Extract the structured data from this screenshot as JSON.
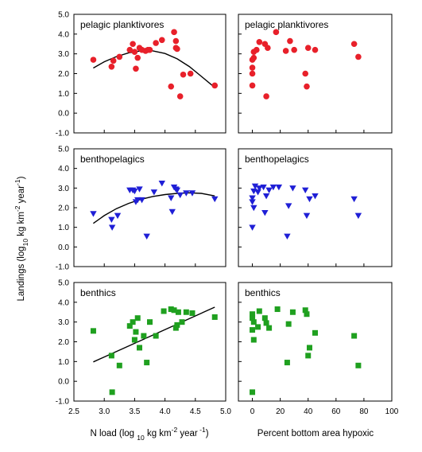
{
  "figure": {
    "ylabel_html": "Landings (log<sub>10</sub> kg km<sup>-2</sup> year<sup>-1</sup>)",
    "ylabel_parts": [
      {
        "t": "Landings (log",
        "s": "n"
      },
      {
        "t": "10",
        "s": "sub"
      },
      {
        "t": " kg km",
        "s": "n"
      },
      {
        "t": "-2",
        "s": "sup"
      },
      {
        "t": " year",
        "s": "n"
      },
      {
        "t": "-1",
        "s": "sup"
      },
      {
        "t": ")",
        "s": "n"
      }
    ],
    "xlabel_left_parts": [
      {
        "t": "N load (log ",
        "s": "n"
      },
      {
        "t": "10",
        "s": "sub"
      },
      {
        "t": " kg km",
        "s": "n"
      },
      {
        "t": "-2",
        "s": "sup"
      },
      {
        "t": " year",
        "s": "n"
      },
      {
        "t": " -1",
        "s": "sup"
      },
      {
        "t": ")",
        "s": "n"
      }
    ],
    "xlabel_right": "Percent bottom area hypoxic"
  },
  "chart_data": [
    {
      "type": "scatter",
      "panel": "pelagic-nload",
      "title": "pelagic planktivores",
      "marker": "circle",
      "color": "#e8202a",
      "xlim": [
        2.5,
        5.0
      ],
      "ylim": [
        -1.0,
        5.0
      ],
      "x_ticks": [
        "2.5",
        "3.0",
        "3.5",
        "4.0",
        "4.5",
        "5.0"
      ],
      "y_ticks": [
        "-1.0",
        "0.0",
        "1.0",
        "2.0",
        "3.0",
        "4.0",
        "5.0"
      ],
      "trend": {
        "type": "quadratic",
        "points": [
          [
            2.82,
            2.28
          ],
          [
            3.0,
            2.6
          ],
          [
            3.2,
            2.86
          ],
          [
            3.4,
            3.05
          ],
          [
            3.6,
            3.15
          ],
          [
            3.8,
            3.15
          ],
          [
            4.0,
            3.02
          ],
          [
            4.2,
            2.75
          ],
          [
            4.4,
            2.36
          ],
          [
            4.6,
            1.86
          ],
          [
            4.82,
            1.3
          ]
        ]
      },
      "points": [
        [
          2.82,
          2.7
        ],
        [
          3.12,
          2.35
        ],
        [
          3.15,
          2.65
        ],
        [
          3.25,
          2.85
        ],
        [
          3.42,
          3.2
        ],
        [
          3.47,
          3.5
        ],
        [
          3.5,
          3.1
        ],
        [
          3.52,
          2.25
        ],
        [
          3.55,
          2.8
        ],
        [
          3.58,
          3.3
        ],
        [
          3.62,
          3.2
        ],
        [
          3.68,
          3.15
        ],
        [
          3.72,
          3.2
        ],
        [
          3.75,
          3.2
        ],
        [
          3.85,
          3.55
        ],
        [
          3.95,
          3.7
        ],
        [
          4.1,
          1.35
        ],
        [
          4.15,
          4.1
        ],
        [
          4.18,
          3.65
        ],
        [
          4.18,
          3.3
        ],
        [
          4.2,
          3.25
        ],
        [
          4.25,
          0.85
        ],
        [
          4.3,
          1.95
        ],
        [
          4.42,
          2.0
        ],
        [
          4.82,
          1.4
        ]
      ]
    },
    {
      "type": "scatter",
      "panel": "pelagic-hypoxic",
      "title": "pelagic planktivores",
      "marker": "circle",
      "color": "#e8202a",
      "xlim": [
        -10,
        100
      ],
      "ylim": [
        -1.0,
        5.0
      ],
      "points": [
        [
          0,
          2.7
        ],
        [
          0,
          2.3
        ],
        [
          0,
          2.0
        ],
        [
          0,
          1.4
        ],
        [
          1,
          3.1
        ],
        [
          1,
          2.8
        ],
        [
          3,
          3.2
        ],
        [
          5,
          3.6
        ],
        [
          9,
          3.5
        ],
        [
          10,
          0.85
        ],
        [
          11,
          3.3
        ],
        [
          17,
          4.1
        ],
        [
          24,
          3.15
        ],
        [
          27,
          3.65
        ],
        [
          30,
          3.2
        ],
        [
          38,
          2.0
        ],
        [
          39,
          1.35
        ],
        [
          40,
          3.3
        ],
        [
          45,
          3.2
        ],
        [
          73,
          3.5
        ],
        [
          76,
          2.85
        ]
      ]
    },
    {
      "type": "scatter",
      "panel": "bentho-nload",
      "title": "benthopelagics",
      "marker": "triangle-down",
      "color": "#1f1fd6",
      "xlim": [
        2.5,
        5.0
      ],
      "ylim": [
        -1.0,
        5.0
      ],
      "x_ticks": [
        "2.5",
        "3.0",
        "3.5",
        "4.0",
        "4.5",
        "5.0"
      ],
      "y_ticks": [
        "-1.0",
        "0.0",
        "1.0",
        "2.0",
        "3.0",
        "4.0",
        "5.0"
      ],
      "trend": {
        "type": "quadratic",
        "points": [
          [
            2.82,
            1.2
          ],
          [
            3.0,
            1.6
          ],
          [
            3.2,
            1.95
          ],
          [
            3.4,
            2.22
          ],
          [
            3.6,
            2.42
          ],
          [
            3.8,
            2.57
          ],
          [
            4.0,
            2.67
          ],
          [
            4.2,
            2.73
          ],
          [
            4.4,
            2.76
          ],
          [
            4.6,
            2.73
          ],
          [
            4.82,
            2.6
          ]
        ]
      },
      "points": [
        [
          2.82,
          1.7
        ],
        [
          3.12,
          1.4
        ],
        [
          3.13,
          1.0
        ],
        [
          3.22,
          1.6
        ],
        [
          3.42,
          2.9
        ],
        [
          3.47,
          2.9
        ],
        [
          3.5,
          2.85
        ],
        [
          3.52,
          2.3
        ],
        [
          3.55,
          2.4
        ],
        [
          3.58,
          2.95
        ],
        [
          3.62,
          2.4
        ],
        [
          3.7,
          0.55
        ],
        [
          3.82,
          2.8
        ],
        [
          3.95,
          3.25
        ],
        [
          4.1,
          2.5
        ],
        [
          4.12,
          1.8
        ],
        [
          4.15,
          3.05
        ],
        [
          4.18,
          2.95
        ],
        [
          4.2,
          2.9
        ],
        [
          4.25,
          2.65
        ],
        [
          4.35,
          2.75
        ],
        [
          4.45,
          2.75
        ],
        [
          4.82,
          2.45
        ]
      ]
    },
    {
      "type": "scatter",
      "panel": "bentho-hypoxic",
      "title": "benthopelagics",
      "marker": "triangle-down",
      "color": "#1f1fd6",
      "xlim": [
        -10,
        100
      ],
      "ylim": [
        -1.0,
        5.0
      ],
      "points": [
        [
          0,
          2.5
        ],
        [
          0,
          2.3
        ],
        [
          0,
          1.0
        ],
        [
          1,
          2.85
        ],
        [
          1,
          2.0
        ],
        [
          2,
          3.1
        ],
        [
          4,
          2.8
        ],
        [
          5,
          3.0
        ],
        [
          8,
          3.05
        ],
        [
          9,
          1.75
        ],
        [
          10,
          2.6
        ],
        [
          12,
          2.9
        ],
        [
          15,
          3.05
        ],
        [
          19,
          3.05
        ],
        [
          25,
          0.55
        ],
        [
          26,
          2.1
        ],
        [
          29,
          3.0
        ],
        [
          38,
          2.9
        ],
        [
          39,
          1.6
        ],
        [
          41,
          2.45
        ],
        [
          45,
          2.6
        ],
        [
          73,
          2.45
        ],
        [
          76,
          1.6
        ]
      ]
    },
    {
      "type": "scatter",
      "panel": "benthic-nload",
      "title": "benthics",
      "marker": "square",
      "color": "#1fa01f",
      "xlim": [
        2.5,
        5.0
      ],
      "ylim": [
        -1.0,
        5.0
      ],
      "x_ticks": [
        "2.5",
        "3.0",
        "3.5",
        "4.0",
        "4.5",
        "5.0"
      ],
      "y_ticks": [
        "-1.0",
        "0.0",
        "1.0",
        "2.0",
        "3.0",
        "4.0",
        "5.0"
      ],
      "trend": {
        "type": "linear",
        "points": [
          [
            2.82,
            0.98
          ],
          [
            4.82,
            3.75
          ]
        ]
      },
      "points": [
        [
          2.82,
          2.55
        ],
        [
          3.12,
          1.3
        ],
        [
          3.13,
          -0.55
        ],
        [
          3.25,
          0.8
        ],
        [
          3.42,
          2.8
        ],
        [
          3.47,
          3.0
        ],
        [
          3.5,
          2.1
        ],
        [
          3.52,
          2.5
        ],
        [
          3.55,
          3.2
        ],
        [
          3.58,
          1.7
        ],
        [
          3.65,
          2.3
        ],
        [
          3.7,
          0.95
        ],
        [
          3.75,
          3.0
        ],
        [
          3.85,
          2.3
        ],
        [
          3.98,
          3.55
        ],
        [
          4.1,
          3.65
        ],
        [
          4.15,
          3.6
        ],
        [
          4.18,
          2.7
        ],
        [
          4.2,
          2.85
        ],
        [
          4.22,
          3.5
        ],
        [
          4.28,
          3.0
        ],
        [
          4.35,
          3.5
        ],
        [
          4.45,
          3.45
        ],
        [
          4.82,
          3.25
        ]
      ]
    },
    {
      "type": "scatter",
      "panel": "benthic-hypoxic",
      "title": "benthics",
      "marker": "square",
      "color": "#1fa01f",
      "xlim": [
        -10,
        100
      ],
      "ylim": [
        -1.0,
        5.0
      ],
      "x_ticks": [
        "0",
        "20",
        "40",
        "60",
        "80",
        "100"
      ],
      "points": [
        [
          0,
          3.4
        ],
        [
          0,
          3.2
        ],
        [
          0,
          2.6
        ],
        [
          0,
          -0.55
        ],
        [
          1,
          3.0
        ],
        [
          1,
          2.1
        ],
        [
          4,
          2.75
        ],
        [
          5,
          3.55
        ],
        [
          9,
          3.2
        ],
        [
          10,
          2.95
        ],
        [
          12,
          2.7
        ],
        [
          18,
          3.65
        ],
        [
          25,
          0.95
        ],
        [
          26,
          2.9
        ],
        [
          29,
          3.5
        ],
        [
          38,
          3.6
        ],
        [
          39,
          3.4
        ],
        [
          40,
          1.3
        ],
        [
          41,
          1.7
        ],
        [
          45,
          2.45
        ],
        [
          73,
          2.3
        ],
        [
          76,
          0.8
        ]
      ]
    }
  ]
}
